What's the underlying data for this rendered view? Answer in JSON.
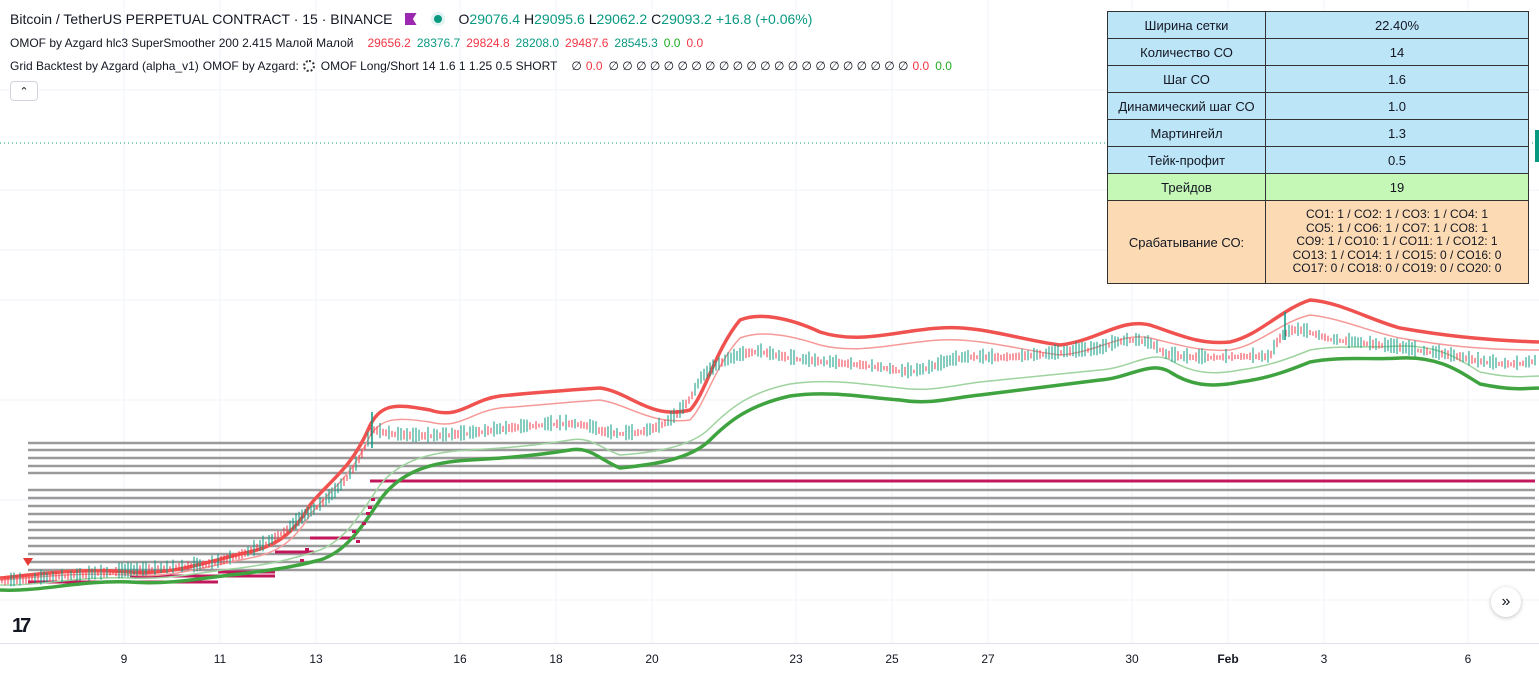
{
  "symbol_bar": {
    "title": "Bitcoin / TetherUS PERPETUAL CONTRACT · 15 · BINANCE",
    "flag_icon": "flag-icon",
    "status_icon": "market-open-dot-icon",
    "o_label": "O",
    "o_value": "29076.4",
    "h_label": "H",
    "h_value": "29095.6",
    "l_label": "L",
    "l_value": "29062.2",
    "c_label": "C",
    "c_value": "29093.2",
    "change": "+16.8 (+0.06%)"
  },
  "indicator_omof": {
    "name": "OMOF by Azgard hlc3 SuperSmoother 200 2.415 Малой Малой",
    "values": [
      "29656.2",
      "28376.7",
      "29824.8",
      "28208.0",
      "29487.6",
      "28545.3",
      "0.0",
      "0.0"
    ],
    "value_colors": [
      "#f23645",
      "#089981",
      "#f23645",
      "#089981",
      "#f23645",
      "#089981",
      "#22ab22",
      "#f23645"
    ]
  },
  "indicator_grid": {
    "name": "Grid Backtest by Azgard (alpha_v1)",
    "source": "OMOF by Azgard:",
    "source_icon": "gear-icon",
    "params": "OMOF Long/Short 14 1.6 1 1.25 0.5 SHORT",
    "values_text_a": "∅",
    "red_zero_a": "0.0",
    "values_text_b": "∅ ∅ ∅ ∅ ∅ ∅ ∅ ∅ ∅ ∅ ∅ ∅ ∅ ∅ ∅ ∅ ∅ ∅ ∅ ∅ ∅ ∅",
    "red_zero_b": "0.0",
    "green_zero": "0.0"
  },
  "collapse_button": {
    "icon": "chevron-up-icon",
    "glyph": "⌃"
  },
  "stats_table": {
    "rows": [
      {
        "label": "Ширина сетки",
        "value": "22.40%"
      },
      {
        "label": "Количество СО",
        "value": "14"
      },
      {
        "label": "Шаг СО",
        "value": "1.6"
      },
      {
        "label": "Динамический шаг СО",
        "value": "1.0"
      },
      {
        "label": "Мартингейл",
        "value": "1.3"
      },
      {
        "label": "Тейк-профит",
        "value": "0.5"
      },
      {
        "label": "Трейдов",
        "value": "19"
      }
    ],
    "co_label": "Срабатывание СО:",
    "co_lines": [
      "CO1: 1 / CO2: 1 / CO3: 1 / CO4: 1",
      "CO5: 1 / CO6: 1 / CO7: 1 / CO8: 1",
      "CO9: 1 / CO10: 1 / CO11: 1 / CO12: 1",
      "CO13: 1 / CO14: 1 / CO15: 0 / CO16: 0",
      "CO17: 0 / CO18: 0 / CO19: 0 / CO20: 0"
    ],
    "colors": {
      "blue": "#bde5f8",
      "green": "#c5f7b6",
      "orange": "#fcdab4"
    }
  },
  "time_axis": {
    "ticks": [
      {
        "label": "9",
        "bold": false
      },
      {
        "label": "11",
        "bold": false
      },
      {
        "label": "13",
        "bold": false
      },
      {
        "label": "16",
        "bold": false
      },
      {
        "label": "18",
        "bold": false
      },
      {
        "label": "20",
        "bold": false
      },
      {
        "label": "23",
        "bold": false
      },
      {
        "label": "25",
        "bold": false
      },
      {
        "label": "27",
        "bold": false
      },
      {
        "label": "30",
        "bold": false
      },
      {
        "label": "Feb",
        "bold": true
      },
      {
        "label": "3",
        "bold": false
      },
      {
        "label": "6",
        "bold": false
      }
    ]
  },
  "logo": {
    "text": "17",
    "icon": "tradingview-logo-icon"
  },
  "scroll_button": {
    "icon": "double-chevron-right-icon",
    "glyph": "»"
  },
  "colors": {
    "upper_band": "#f0524f",
    "lower_band": "#3fa33f",
    "grid_level": "#9a9a9a",
    "active_level": "#c2185b",
    "candle_up": "#089981",
    "candle_down": "#f23645"
  }
}
